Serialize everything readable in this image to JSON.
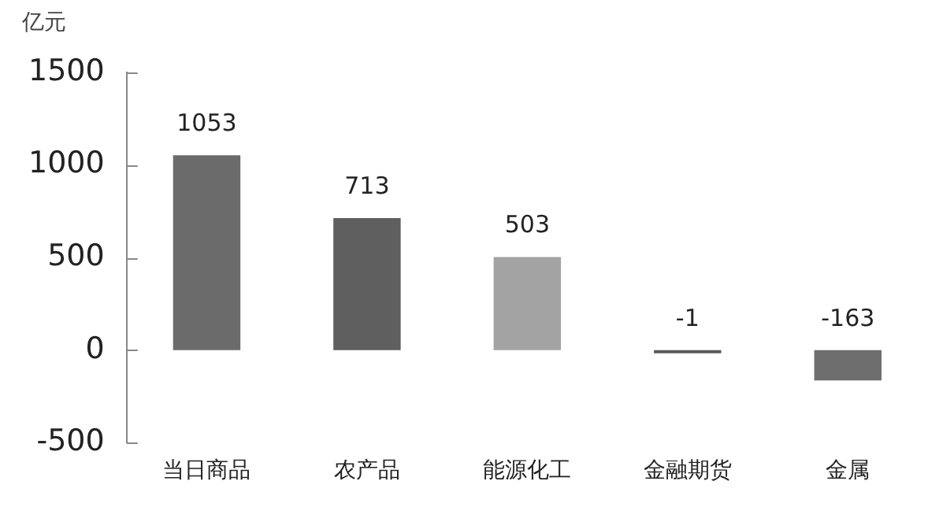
{
  "chart_data": {
    "type": "bar",
    "ylabel": "亿元",
    "categories": [
      "当日商品",
      "农产品",
      "能源化工",
      "金融期货",
      "金属"
    ],
    "values": [
      1053,
      713,
      503,
      -1,
      -163
    ],
    "colors": [
      "#6b6b6b",
      "#5f5f5f",
      "#a3a3a3",
      "#5a5a5a",
      "#6e6e6e"
    ],
    "ylim": [
      -500,
      1500
    ],
    "yticks": [
      -500,
      0,
      500,
      1000,
      1500
    ],
    "data_labels": true,
    "grid": false,
    "legend": false
  }
}
